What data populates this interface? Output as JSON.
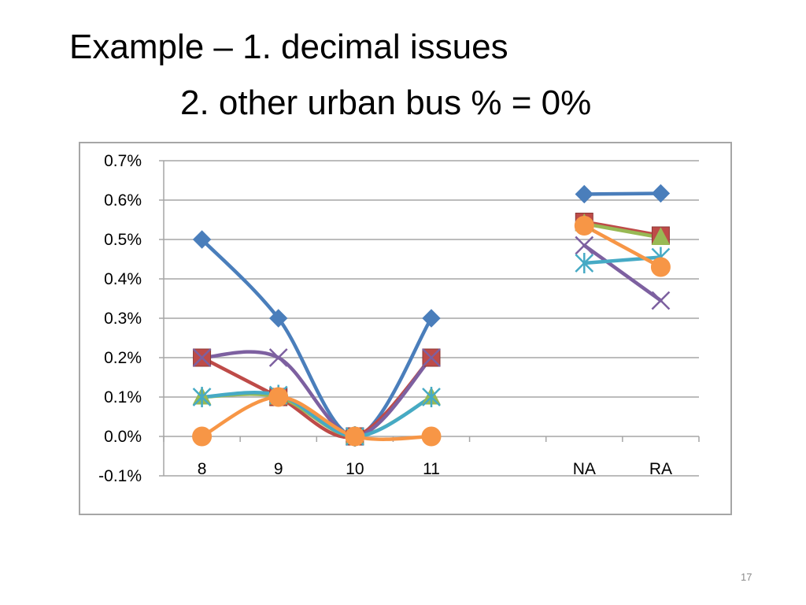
{
  "slide": {
    "title_line1": "Example – 1. decimal issues",
    "title_line2": "2. other urban bus % = 0%",
    "page_number": "17"
  },
  "colors": {
    "blue": "#4a7ebb",
    "red": "#be4b48",
    "green": "#98b954",
    "purple": "#7d60a0",
    "teal": "#46aac5",
    "orange": "#f79646",
    "grid": "#a6a6a6"
  },
  "chart_data": {
    "type": "line",
    "categories": [
      "8",
      "9",
      "10",
      "11",
      "",
      "NA",
      "RA"
    ],
    "y_ticks": [
      "0.7%",
      "0.6%",
      "0.5%",
      "0.4%",
      "0.3%",
      "0.2%",
      "0.1%",
      "0.0%",
      "-0.1%"
    ],
    "ylim": [
      -0.1,
      0.7
    ],
    "grid": true,
    "legend": "none",
    "title": "",
    "xlabel": "",
    "ylabel": "",
    "series": [
      {
        "color": "blue",
        "marker": "diamond",
        "values": [
          0.5,
          0.3,
          0.0,
          0.3,
          null,
          0.615,
          0.617
        ]
      },
      {
        "color": "red",
        "marker": "square",
        "values": [
          0.2,
          0.1,
          0.0,
          0.2,
          null,
          0.545,
          0.51
        ]
      },
      {
        "color": "green",
        "marker": "triangle",
        "values": [
          0.1,
          0.1,
          0.0,
          0.1,
          null,
          0.54,
          0.505
        ]
      },
      {
        "color": "purple",
        "marker": "x",
        "values": [
          0.2,
          0.2,
          0.0,
          0.2,
          null,
          0.485,
          0.345
        ]
      },
      {
        "color": "teal",
        "marker": "star",
        "values": [
          0.1,
          0.105,
          0.0,
          0.1,
          null,
          0.44,
          0.455
        ]
      },
      {
        "color": "orange",
        "marker": "circle",
        "values": [
          0.0,
          0.1,
          0.0,
          0.0,
          null,
          0.535,
          0.43
        ]
      }
    ]
  }
}
